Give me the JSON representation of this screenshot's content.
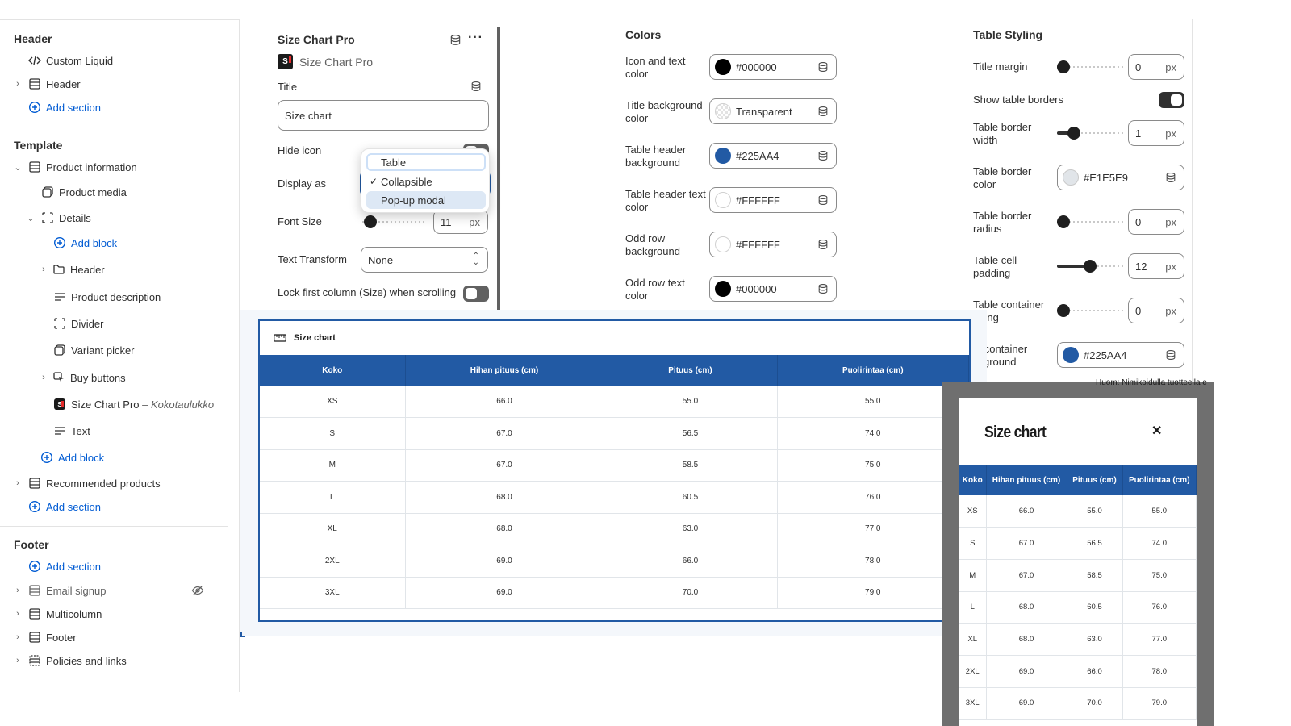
{
  "sidebar": {
    "header_group": "Header",
    "header_items": [
      "Custom Liquid",
      "Header"
    ],
    "add_section": "Add section",
    "template_group": "Template",
    "product_information": "Product information",
    "product_media": "Product media",
    "details": "Details",
    "add_block": "Add block",
    "details_children": [
      "Header",
      "Product description",
      "Divider",
      "Variant picker",
      "Buy buttons"
    ],
    "size_chart_app": "Size Chart Pro",
    "size_chart_app_suffix": "– Kokotaulukko",
    "text_block": "Text",
    "recommended_products": "Recommended products",
    "footer_group": "Footer",
    "footer_items": [
      "Email signup",
      "Multicolumn",
      "Footer",
      "Policies and links"
    ]
  },
  "settings": {
    "title": "Size Chart Pro",
    "app_name": "Size Chart Pro",
    "title_label": "Title",
    "title_value": "Size chart",
    "hide_icon_label": "Hide icon",
    "display_as_label": "Display as",
    "display_options": [
      "Table",
      "Collapsible",
      "Pop-up modal"
    ],
    "display_selected": "Collapsible",
    "font_size_label": "Font Size",
    "font_size_value": "11",
    "unit": "px",
    "text_transform_label": "Text Transform",
    "text_transform_value": "None",
    "lock_column_label": "Lock first column (Size) when scrolling"
  },
  "colors": {
    "heading": "Colors",
    "items": [
      {
        "label1": "Icon and text",
        "label2": "color",
        "value": "#000000",
        "swatch": "#000000"
      },
      {
        "label1": "Title background",
        "label2": "color",
        "value": "Transparent",
        "swatch": "transparent"
      },
      {
        "label1": "Table header",
        "label2": "background",
        "value": "#225AA4",
        "swatch": "#225AA4"
      },
      {
        "label1": "Table header text",
        "label2": "color",
        "value": "#FFFFFF",
        "swatch": "#FFFFFF"
      },
      {
        "label1": "Odd row",
        "label2": "background",
        "value": "#FFFFFF",
        "swatch": "#FFFFFF"
      },
      {
        "label1": "Odd row text",
        "label2": "color",
        "value": "#000000",
        "swatch": "#000000"
      }
    ]
  },
  "table_styling": {
    "heading": "Table Styling",
    "title_margin_label": "Title margin",
    "title_margin_value": "0",
    "title_margin_level": 0,
    "show_borders_label": "Show table borders",
    "border_width_label1": "Table border",
    "border_width_label2": "width",
    "border_width_value": "1",
    "border_width_level": 0.2,
    "border_color_label1": "Table border",
    "border_color_label2": "color",
    "border_color_value": "#E1E5E9",
    "border_radius_label1": "Table border",
    "border_radius_label2": "radius",
    "border_radius_value": "0",
    "border_radius_level": 0,
    "cell_padding_label1": "Table cell",
    "cell_padding_label2": "padding",
    "cell_padding_value": "12",
    "cell_padding_level": 0.5,
    "container_padding_label1": "Table container",
    "container_padding_label2": "dding",
    "container_padding_value": "0",
    "container_padding_level": 0,
    "container_bg_label1": "le container",
    "container_bg_label2": "ckground",
    "container_bg_value": "#225AA4"
  },
  "preview": {
    "chart_title": "Size chart",
    "headers": [
      "Koko",
      "Hihan pituus (cm)",
      "Pituus (cm)",
      "Puolirintaa (cm)"
    ],
    "rows": [
      [
        "XS",
        "66.0",
        "55.0",
        "55.0"
      ],
      [
        "S",
        "67.0",
        "56.5",
        "74.0"
      ],
      [
        "M",
        "67.0",
        "58.5",
        "75.0"
      ],
      [
        "L",
        "68.0",
        "60.5",
        "76.0"
      ],
      [
        "XL",
        "68.0",
        "63.0",
        "77.0"
      ],
      [
        "2XL",
        "69.0",
        "66.0",
        "78.0"
      ],
      [
        "3XL",
        "69.0",
        "70.0",
        "79.0"
      ]
    ],
    "background_note": "Huom: Nimikoidulla tuotteella e",
    "modal_title": "Size chart",
    "close_symbol": "✕"
  },
  "accent": "#005bd3",
  "table_header_color": "#225AA4"
}
